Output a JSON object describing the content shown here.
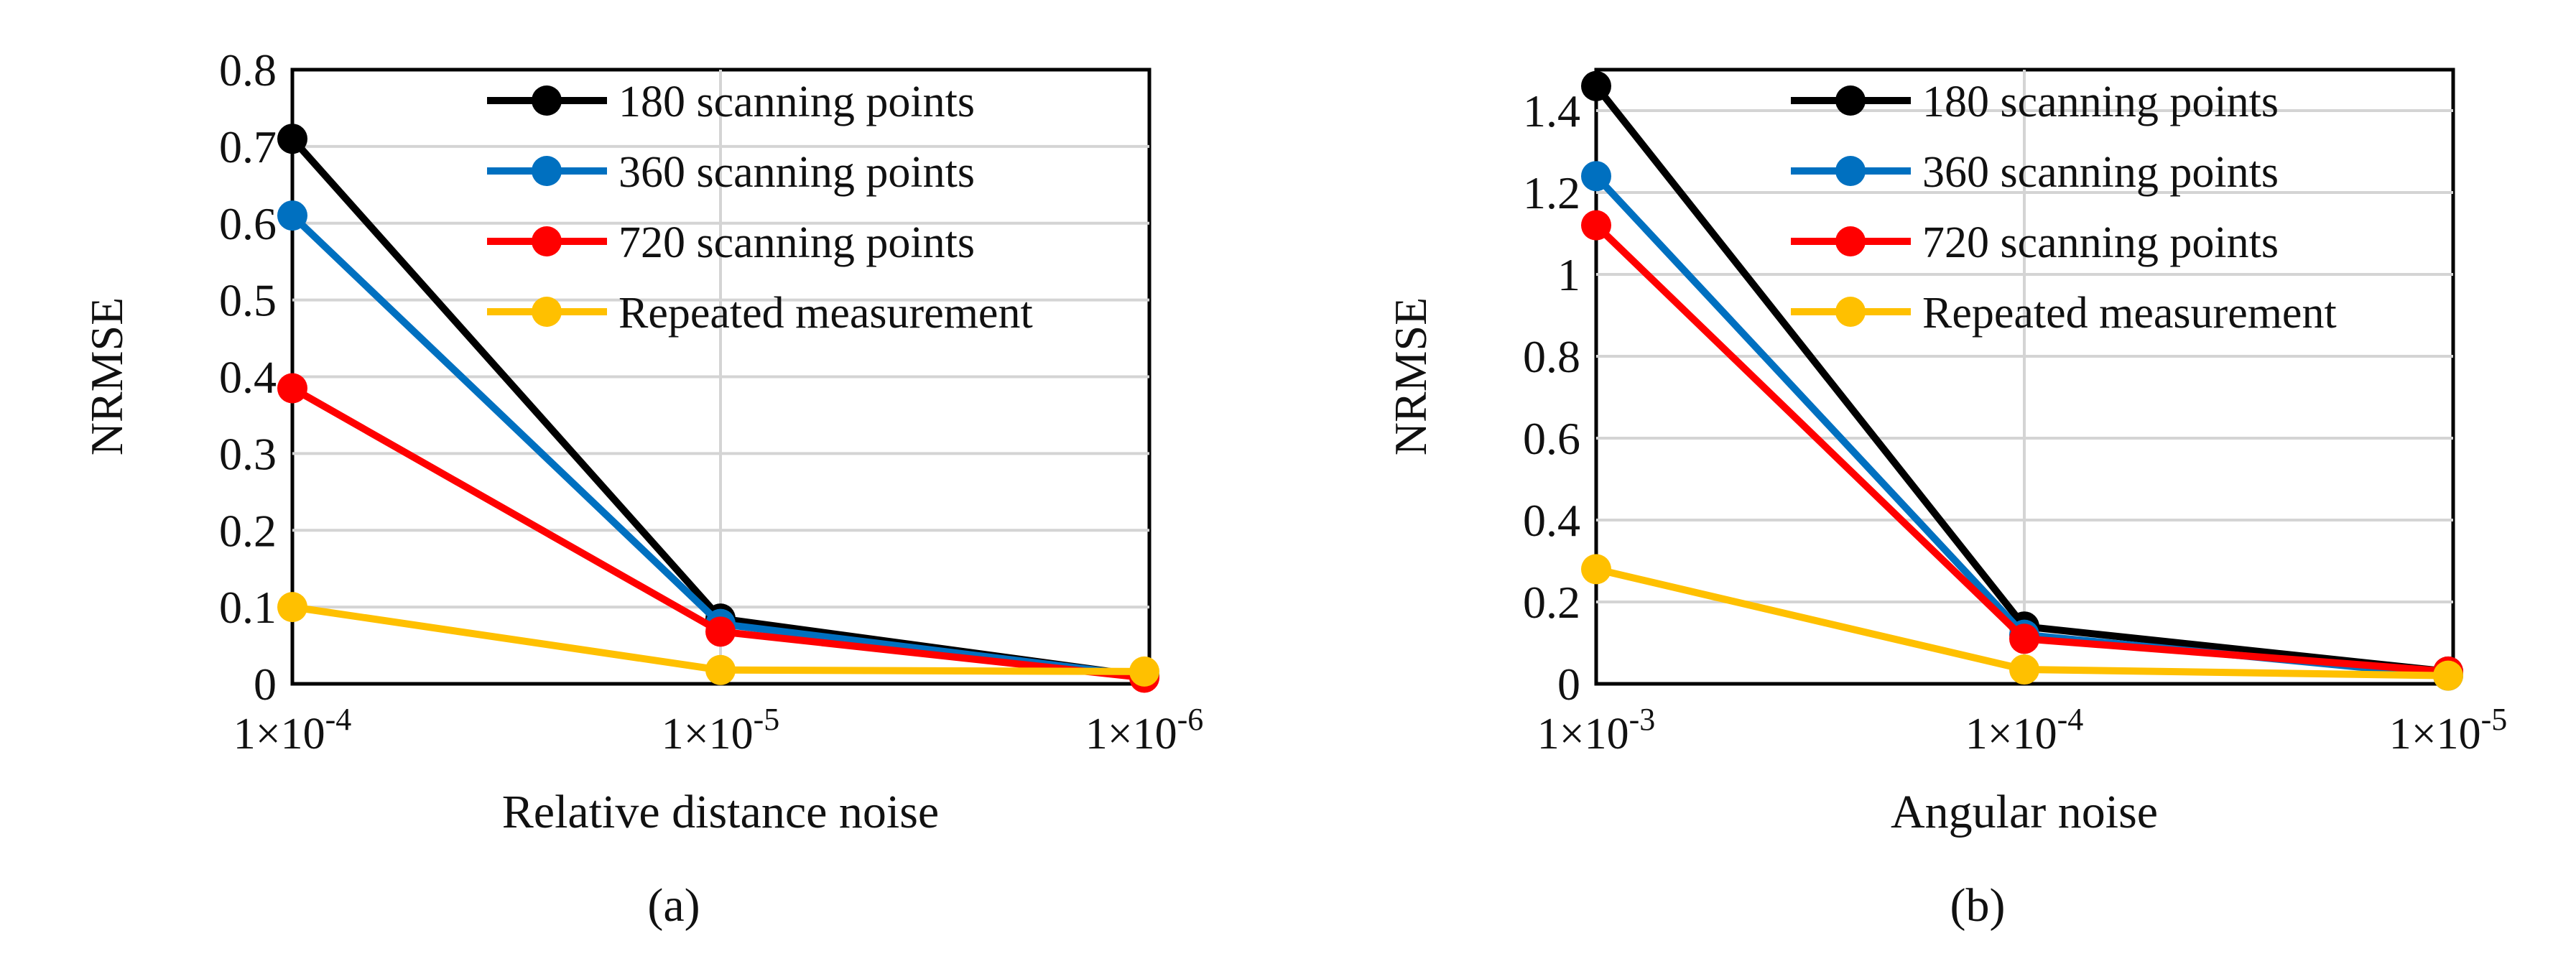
{
  "chart_data": [
    {
      "panel": "(a)",
      "type": "line",
      "xlabel": "Relative distance noise",
      "ylabel": "NRMSE",
      "categories": [
        "1×10-4",
        "1×10-5",
        "1×10-6"
      ],
      "category_parts": [
        {
          "base": "1×10",
          "exp": "-4"
        },
        {
          "base": "1×10",
          "exp": "-5"
        },
        {
          "base": "1×10",
          "exp": "-6"
        }
      ],
      "ylim": [
        0,
        0.8
      ],
      "yticks": [
        0,
        0.1,
        0.2,
        0.3,
        0.4,
        0.5,
        0.6,
        0.7,
        0.8
      ],
      "ytick_labels": [
        "0",
        "0.1",
        "0.2",
        "0.3",
        "0.4",
        "0.5",
        "0.6",
        "0.7",
        "0.8"
      ],
      "grid": true,
      "legend": "top-right",
      "series": [
        {
          "name": "180 scanning points",
          "color": "#000000",
          "values": [
            0.71,
            0.085,
            0.01
          ]
        },
        {
          "name": "360 scanning points",
          "color": "#0070C0",
          "values": [
            0.61,
            0.078,
            0.01
          ]
        },
        {
          "name": "720 scanning points",
          "color": "#FF0000",
          "values": [
            0.385,
            0.068,
            0.008
          ]
        },
        {
          "name": "Repeated measurement",
          "color": "#FFC000",
          "values": [
            0.1,
            0.018,
            0.016
          ]
        }
      ]
    },
    {
      "panel": "(b)",
      "type": "line",
      "xlabel": "Angular noise",
      "ylabel": "NRMSE",
      "categories": [
        "1×10-3",
        "1×10-4",
        "1×10-5"
      ],
      "category_parts": [
        {
          "base": "1×10",
          "exp": "-3"
        },
        {
          "base": "1×10",
          "exp": "-4"
        },
        {
          "base": "1×10",
          "exp": "-5"
        }
      ],
      "ylim": [
        0,
        1.5
      ],
      "yticks": [
        0,
        0.2,
        0.4,
        0.6,
        0.8,
        1.0,
        1.2,
        1.4
      ],
      "ytick_labels": [
        "0",
        "0.2",
        "0.4",
        "0.6",
        "0.8",
        "1",
        "1.2",
        "1.4"
      ],
      "grid": true,
      "legend": "top-right",
      "series": [
        {
          "name": "180 scanning points",
          "color": "#000000",
          "values": [
            1.46,
            0.14,
            0.03
          ]
        },
        {
          "name": "360 scanning points",
          "color": "#0070C0",
          "values": [
            1.24,
            0.12,
            0.02
          ]
        },
        {
          "name": "720 scanning points",
          "color": "#FF0000",
          "values": [
            1.12,
            0.11,
            0.03
          ]
        },
        {
          "name": "Repeated measurement",
          "color": "#FFC000",
          "values": [
            0.28,
            0.035,
            0.02
          ]
        }
      ]
    }
  ]
}
